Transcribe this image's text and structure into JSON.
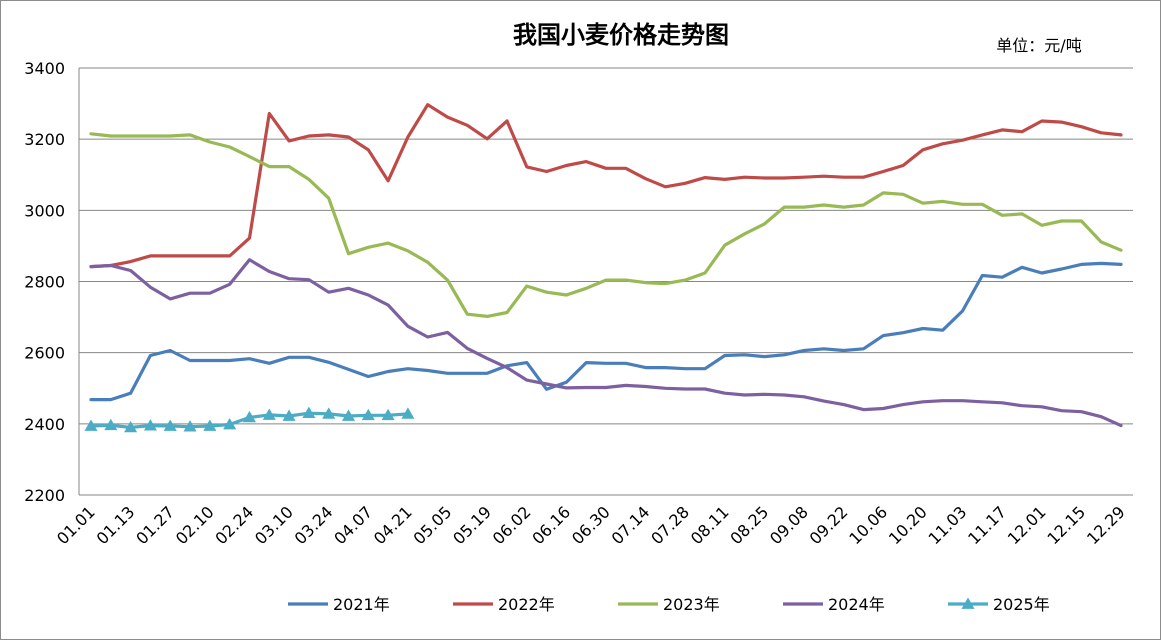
{
  "chart_data": {
    "type": "line",
    "title": "我国小麦价格走势图",
    "unit_label": "单位：元/吨",
    "xlabel": "",
    "ylabel": "",
    "ylim": [
      2200,
      3400
    ],
    "yticks": [
      2200,
      2400,
      2600,
      2800,
      3000,
      3200,
      3400
    ],
    "grid": "horizontal",
    "legend_position": "bottom",
    "x_tick_labels": [
      "01.01",
      "01.13",
      "01.27",
      "02.10",
      "02.24",
      "03.10",
      "03.24",
      "04.07",
      "04.21",
      "05.05",
      "05.19",
      "06.02",
      "06.16",
      "06.30",
      "07.14",
      "07.28",
      "08.11",
      "08.25",
      "09.08",
      "09.22",
      "10.06",
      "10.20",
      "11.03",
      "11.17",
      "12.01",
      "12.15",
      "12.29"
    ],
    "n_points": 53,
    "series": [
      {
        "name": "2021年",
        "color": "#4a7ebb",
        "marker": "none",
        "values": [
          2468,
          2468,
          2486,
          2592,
          2606,
          2578,
          2578,
          2578,
          2583,
          2570,
          2587,
          2587,
          2573,
          2553,
          2533,
          2547,
          2555,
          2550,
          2542,
          2542,
          2542,
          2563,
          2572,
          2497,
          2517,
          2572,
          2570,
          2570,
          2558,
          2558,
          2555,
          2555,
          2592,
          2594,
          2589,
          2594,
          2606,
          2611,
          2606,
          2611,
          2648,
          2656,
          2668,
          2663,
          2717,
          2817,
          2812,
          2840,
          2824,
          2835,
          2848,
          2851,
          2848
        ]
      },
      {
        "name": "2022年",
        "color": "#be4b48",
        "marker": "none",
        "values": [
          2842,
          2845,
          2856,
          2872,
          2872,
          2872,
          2872,
          2872,
          2922,
          3272,
          3195,
          3209,
          3212,
          3206,
          3170,
          3083,
          3206,
          3297,
          3262,
          3239,
          3201,
          3251,
          3122,
          3109,
          3126,
          3137,
          3118,
          3118,
          3089,
          3066,
          3076,
          3092,
          3087,
          3093,
          3091,
          3091,
          3093,
          3096,
          3093,
          3093,
          3109,
          3126,
          3170,
          3187,
          3197,
          3212,
          3226,
          3221,
          3251,
          3248,
          3235,
          3218,
          3212
        ]
      },
      {
        "name": "2023年",
        "color": "#98b954",
        "marker": "none",
        "values": [
          3215,
          3209,
          3209,
          3209,
          3209,
          3212,
          3192,
          3178,
          3151,
          3123,
          3123,
          3087,
          3034,
          2878,
          2896,
          2908,
          2886,
          2854,
          2804,
          2708,
          2702,
          2713,
          2787,
          2770,
          2762,
          2781,
          2804,
          2804,
          2797,
          2794,
          2804,
          2824,
          2902,
          2934,
          2962,
          3009,
          3009,
          3015,
          3009,
          3015,
          3049,
          3045,
          3020,
          3025,
          3017,
          3017,
          2986,
          2990,
          2958,
          2970,
          2970,
          2911,
          2888
        ]
      },
      {
        "name": "2024年",
        "color": "#7d60a0",
        "marker": "none",
        "values": [
          2842,
          2845,
          2831,
          2784,
          2751,
          2767,
          2767,
          2792,
          2861,
          2828,
          2808,
          2805,
          2770,
          2781,
          2762,
          2734,
          2674,
          2644,
          2657,
          2612,
          2584,
          2558,
          2523,
          2512,
          2501,
          2502,
          2502,
          2508,
          2505,
          2500,
          2498,
          2498,
          2486,
          2481,
          2483,
          2481,
          2476,
          2464,
          2454,
          2440,
          2443,
          2454,
          2462,
          2465,
          2465,
          2462,
          2459,
          2451,
          2448,
          2437,
          2434,
          2420,
          2395
        ]
      },
      {
        "name": "2025年",
        "color": "#4bacc6",
        "marker": "triangle",
        "values": [
          2394,
          2396,
          2390,
          2395,
          2394,
          2392,
          2394,
          2398,
          2418,
          2425,
          2422,
          2430,
          2428,
          2422,
          2424,
          2424,
          2428
        ]
      }
    ]
  }
}
